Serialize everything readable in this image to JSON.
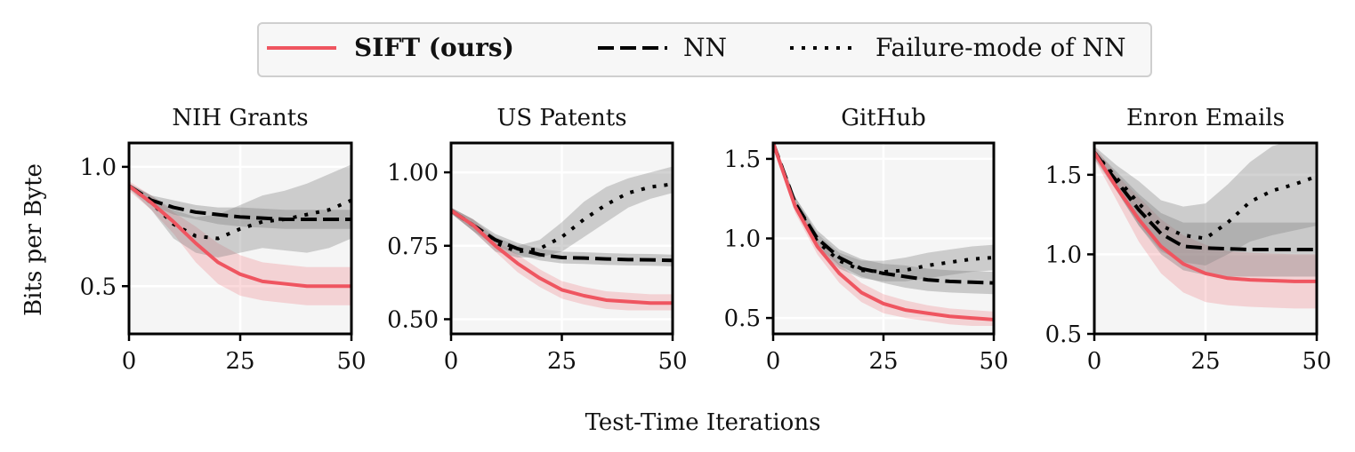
{
  "legend": {
    "items": [
      {
        "label": "SIFT (ours)",
        "style": "solid",
        "color": "#ef5560",
        "bold": true
      },
      {
        "label": "NN",
        "style": "dashed",
        "color": "#000000",
        "bold": false
      },
      {
        "label": "Failure-mode of NN",
        "style": "dotted",
        "color": "#000000",
        "bold": false
      }
    ]
  },
  "figure": {
    "ylabel": "Bits per Byte",
    "xlabel": "Test-Time Iterations"
  },
  "chart_data": [
    {
      "type": "line",
      "title": "NIH Grants",
      "xlim": [
        0,
        50
      ],
      "ylim": [
        0.3,
        1.1
      ],
      "xticks": [
        0,
        25,
        50
      ],
      "xtick_labels": [
        "0",
        "25",
        "50"
      ],
      "yticks": [
        0.5,
        1.0
      ],
      "ytick_labels": [
        "0.5",
        "1.0"
      ],
      "x": [
        0,
        5,
        10,
        15,
        20,
        25,
        30,
        35,
        40,
        45,
        50
      ],
      "series": [
        {
          "name": "SIFT (ours)",
          "style": "solid",
          "color": "#ef5560",
          "values": [
            0.92,
            0.85,
            0.77,
            0.68,
            0.6,
            0.55,
            0.52,
            0.51,
            0.5,
            0.5,
            0.5
          ],
          "lower": [
            0.9,
            0.82,
            0.72,
            0.6,
            0.51,
            0.46,
            0.44,
            0.43,
            0.42,
            0.42,
            0.42
          ],
          "upper": [
            0.94,
            0.88,
            0.81,
            0.75,
            0.68,
            0.63,
            0.6,
            0.59,
            0.58,
            0.58,
            0.58
          ]
        },
        {
          "name": "NN",
          "style": "dashed",
          "color": "#000000",
          "values": [
            0.92,
            0.86,
            0.83,
            0.81,
            0.8,
            0.79,
            0.785,
            0.78,
            0.78,
            0.78,
            0.78
          ],
          "lower": [
            0.91,
            0.84,
            0.8,
            0.78,
            0.76,
            0.75,
            0.745,
            0.74,
            0.74,
            0.74,
            0.74
          ],
          "upper": [
            0.93,
            0.88,
            0.86,
            0.84,
            0.83,
            0.83,
            0.825,
            0.82,
            0.82,
            0.82,
            0.82
          ]
        },
        {
          "name": "Failure-mode of NN",
          "style": "dotted",
          "color": "#000000",
          "values": [
            0.92,
            0.85,
            0.76,
            0.71,
            0.7,
            0.74,
            0.77,
            0.78,
            0.8,
            0.82,
            0.86
          ],
          "lower": [
            0.91,
            0.82,
            0.7,
            0.64,
            0.62,
            0.64,
            0.66,
            0.65,
            0.64,
            0.66,
            0.7
          ],
          "upper": [
            0.93,
            0.88,
            0.82,
            0.79,
            0.8,
            0.84,
            0.88,
            0.9,
            0.93,
            0.97,
            1.01
          ]
        }
      ]
    },
    {
      "type": "line",
      "title": "US Patents",
      "xlim": [
        0,
        50
      ],
      "ylim": [
        0.45,
        1.1
      ],
      "xticks": [
        0,
        25,
        50
      ],
      "xtick_labels": [
        "0",
        "25",
        "50"
      ],
      "yticks": [
        0.5,
        0.75,
        1.0
      ],
      "ytick_labels": [
        "0.50",
        "0.75",
        "1.00"
      ],
      "x": [
        0,
        5,
        10,
        15,
        20,
        25,
        30,
        35,
        40,
        45,
        50
      ],
      "series": [
        {
          "name": "SIFT (ours)",
          "style": "solid",
          "color": "#ef5560",
          "values": [
            0.87,
            0.82,
            0.75,
            0.69,
            0.64,
            0.6,
            0.58,
            0.565,
            0.56,
            0.555,
            0.555
          ],
          "lower": [
            0.86,
            0.8,
            0.73,
            0.66,
            0.61,
            0.57,
            0.55,
            0.535,
            0.53,
            0.53,
            0.53
          ],
          "upper": [
            0.88,
            0.84,
            0.77,
            0.72,
            0.67,
            0.63,
            0.61,
            0.595,
            0.59,
            0.585,
            0.585
          ]
        },
        {
          "name": "NN",
          "style": "dashed",
          "color": "#000000",
          "values": [
            0.87,
            0.82,
            0.77,
            0.74,
            0.72,
            0.71,
            0.708,
            0.705,
            0.703,
            0.702,
            0.7
          ],
          "lower": [
            0.86,
            0.8,
            0.75,
            0.72,
            0.7,
            0.69,
            0.688,
            0.685,
            0.683,
            0.682,
            0.68
          ],
          "upper": [
            0.88,
            0.84,
            0.79,
            0.76,
            0.74,
            0.73,
            0.728,
            0.725,
            0.723,
            0.722,
            0.72
          ]
        },
        {
          "name": "Failure-mode of NN",
          "style": "dotted",
          "color": "#000000",
          "values": [
            0.87,
            0.82,
            0.76,
            0.73,
            0.74,
            0.78,
            0.84,
            0.89,
            0.93,
            0.95,
            0.96
          ],
          "lower": [
            0.86,
            0.8,
            0.73,
            0.71,
            0.71,
            0.73,
            0.78,
            0.83,
            0.88,
            0.91,
            0.93
          ],
          "upper": [
            0.88,
            0.84,
            0.78,
            0.75,
            0.77,
            0.83,
            0.9,
            0.95,
            0.98,
            1.0,
            1.02
          ]
        }
      ]
    },
    {
      "type": "line",
      "title": "GitHub",
      "xlim": [
        0,
        50
      ],
      "ylim": [
        0.4,
        1.6
      ],
      "xticks": [
        0,
        25,
        50
      ],
      "xtick_labels": [
        "0",
        "25",
        "50"
      ],
      "yticks": [
        0.5,
        1.0,
        1.5
      ],
      "ytick_labels": [
        "0.5",
        "1.0",
        "1.5"
      ],
      "x": [
        0,
        5,
        10,
        15,
        20,
        25,
        30,
        35,
        40,
        45,
        50
      ],
      "series": [
        {
          "name": "SIFT (ours)",
          "style": "solid",
          "color": "#ef5560",
          "values": [
            1.6,
            1.2,
            0.95,
            0.78,
            0.66,
            0.59,
            0.55,
            0.53,
            0.51,
            0.5,
            0.49
          ],
          "lower": [
            1.58,
            1.16,
            0.9,
            0.72,
            0.6,
            0.53,
            0.5,
            0.48,
            0.46,
            0.45,
            0.45
          ],
          "upper": [
            1.62,
            1.24,
            1.0,
            0.84,
            0.72,
            0.65,
            0.61,
            0.58,
            0.56,
            0.55,
            0.54
          ]
        },
        {
          "name": "NN",
          "style": "dashed",
          "color": "#000000",
          "values": [
            1.6,
            1.22,
            1.0,
            0.88,
            0.81,
            0.78,
            0.76,
            0.74,
            0.73,
            0.725,
            0.72
          ],
          "lower": [
            1.58,
            1.18,
            0.95,
            0.83,
            0.76,
            0.72,
            0.69,
            0.67,
            0.66,
            0.655,
            0.65
          ],
          "upper": [
            1.62,
            1.26,
            1.05,
            0.93,
            0.87,
            0.84,
            0.83,
            0.81,
            0.8,
            0.795,
            0.79
          ]
        },
        {
          "name": "Failure-mode of NN",
          "style": "dotted",
          "color": "#000000",
          "values": [
            1.6,
            1.22,
            0.98,
            0.86,
            0.8,
            0.79,
            0.8,
            0.83,
            0.85,
            0.87,
            0.88
          ],
          "lower": [
            1.58,
            1.18,
            0.93,
            0.81,
            0.75,
            0.73,
            0.73,
            0.75,
            0.77,
            0.79,
            0.8
          ],
          "upper": [
            1.62,
            1.26,
            1.03,
            0.91,
            0.86,
            0.86,
            0.88,
            0.91,
            0.93,
            0.95,
            0.96
          ]
        }
      ]
    },
    {
      "type": "line",
      "title": "Enron Emails",
      "xlim": [
        0,
        50
      ],
      "ylim": [
        0.5,
        1.7
      ],
      "xticks": [
        0,
        25,
        50
      ],
      "xtick_labels": [
        "0",
        "25",
        "50"
      ],
      "yticks": [
        0.5,
        1.0,
        1.5
      ],
      "ytick_labels": [
        "0.5",
        "1.0",
        "1.5"
      ],
      "x": [
        0,
        5,
        10,
        15,
        20,
        25,
        30,
        35,
        40,
        45,
        50
      ],
      "series": [
        {
          "name": "SIFT (ours)",
          "style": "solid",
          "color": "#ef5560",
          "values": [
            1.64,
            1.42,
            1.22,
            1.05,
            0.94,
            0.88,
            0.85,
            0.84,
            0.835,
            0.83,
            0.83
          ],
          "lower": [
            1.6,
            1.34,
            1.08,
            0.88,
            0.76,
            0.7,
            0.68,
            0.67,
            0.665,
            0.66,
            0.66
          ],
          "upper": [
            1.68,
            1.5,
            1.36,
            1.22,
            1.12,
            1.06,
            1.02,
            1.01,
            1.005,
            1.0,
            1.0
          ]
        },
        {
          "name": "NN",
          "style": "dashed",
          "color": "#000000",
          "values": [
            1.64,
            1.46,
            1.28,
            1.13,
            1.05,
            1.04,
            1.035,
            1.03,
            1.03,
            1.03,
            1.03
          ],
          "lower": [
            1.62,
            1.4,
            1.18,
            1.0,
            0.9,
            0.87,
            0.86,
            0.86,
            0.86,
            0.86,
            0.86
          ],
          "upper": [
            1.66,
            1.52,
            1.38,
            1.26,
            1.2,
            1.2,
            1.2,
            1.2,
            1.2,
            1.2,
            1.2
          ]
        },
        {
          "name": "Failure-mode of NN",
          "style": "dotted",
          "color": "#000000",
          "values": [
            1.64,
            1.48,
            1.32,
            1.18,
            1.12,
            1.1,
            1.2,
            1.33,
            1.4,
            1.44,
            1.49
          ],
          "lower": [
            1.6,
            1.4,
            1.18,
            1.02,
            0.95,
            0.93,
            1.0,
            1.08,
            1.12,
            1.15,
            1.18
          ],
          "upper": [
            1.68,
            1.56,
            1.46,
            1.34,
            1.3,
            1.32,
            1.44,
            1.58,
            1.68,
            1.72,
            1.76
          ]
        }
      ]
    }
  ]
}
